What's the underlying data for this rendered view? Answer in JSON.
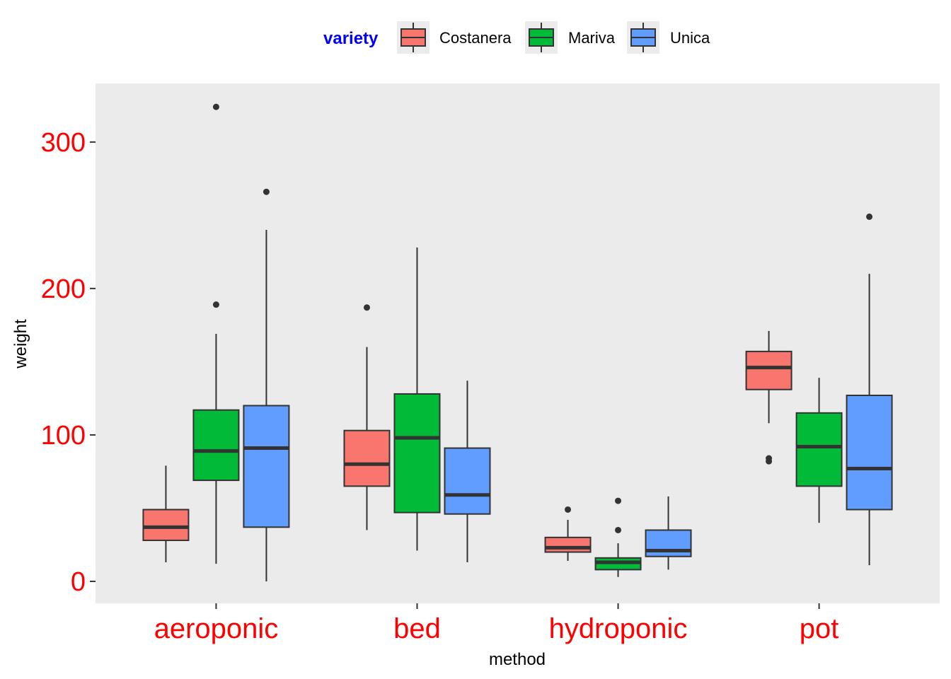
{
  "chart_data": {
    "type": "boxplot",
    "xlabel": "method",
    "ylabel": "weight",
    "ylim": [
      -15,
      340
    ],
    "y_ticks": [
      0,
      100,
      200,
      300
    ],
    "categories": [
      "aeroponic",
      "bed",
      "hydroponic",
      "pot"
    ],
    "legend": {
      "title": "variety",
      "position": "top"
    },
    "grid": false,
    "series": [
      {
        "name": "Costanera",
        "color": "#F8766D",
        "boxes": [
          {
            "category": "aeroponic",
            "q1": 28,
            "median": 37,
            "q3": 49,
            "whisker_low": 13,
            "whisker_high": 79,
            "outliers": []
          },
          {
            "category": "bed",
            "q1": 65,
            "median": 80,
            "q3": 103,
            "whisker_low": 35,
            "whisker_high": 160,
            "outliers": [
              187
            ]
          },
          {
            "category": "hydroponic",
            "q1": 20,
            "median": 23,
            "q3": 30,
            "whisker_low": 14,
            "whisker_high": 42,
            "outliers": [
              49
            ]
          },
          {
            "category": "pot",
            "q1": 131,
            "median": 146,
            "q3": 157,
            "whisker_low": 108,
            "whisker_high": 171,
            "outliers": [
              82,
              84
            ]
          }
        ]
      },
      {
        "name": "Mariva",
        "color": "#00BA38",
        "boxes": [
          {
            "category": "aeroponic",
            "q1": 69,
            "median": 89,
            "q3": 117,
            "whisker_low": 12,
            "whisker_high": 169,
            "outliers": [
              189,
              324
            ]
          },
          {
            "category": "bed",
            "q1": 47,
            "median": 98,
            "q3": 128,
            "whisker_low": 21,
            "whisker_high": 228,
            "outliers": []
          },
          {
            "category": "hydroponic",
            "q1": 8,
            "median": 13,
            "q3": 16,
            "whisker_low": 3,
            "whisker_high": 26,
            "outliers": [
              35,
              55
            ]
          },
          {
            "category": "pot",
            "q1": 65,
            "median": 92,
            "q3": 115,
            "whisker_low": 40,
            "whisker_high": 139,
            "outliers": []
          }
        ]
      },
      {
        "name": "Unica",
        "color": "#619CFF",
        "boxes": [
          {
            "category": "aeroponic",
            "q1": 37,
            "median": 91,
            "q3": 120,
            "whisker_low": 0,
            "whisker_high": 240,
            "outliers": [
              266
            ]
          },
          {
            "category": "bed",
            "q1": 46,
            "median": 59,
            "q3": 91,
            "whisker_low": 13,
            "whisker_high": 137,
            "outliers": []
          },
          {
            "category": "hydroponic",
            "q1": 17,
            "median": 21,
            "q3": 35,
            "whisker_low": 8,
            "whisker_high": 58,
            "outliers": []
          },
          {
            "category": "pot",
            "q1": 49,
            "median": 77,
            "q3": 127,
            "whisker_low": 11,
            "whisker_high": 210,
            "outliers": [
              249
            ]
          }
        ]
      }
    ]
  }
}
